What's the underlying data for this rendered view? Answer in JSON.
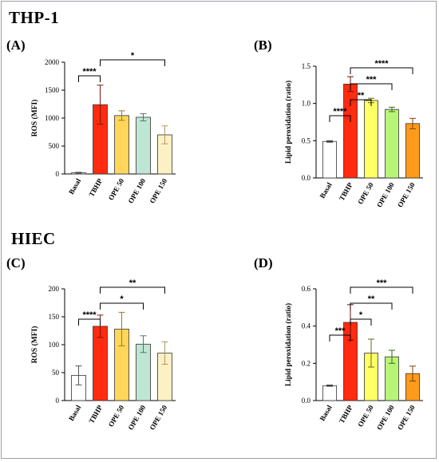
{
  "groups": {
    "top": "THP-1",
    "bottom": "HIEC"
  },
  "panels": [
    {
      "letter": "(A)",
      "chart_data": {
        "type": "bar",
        "ylabel": "ROS (MFI)",
        "ylim": [
          0,
          2000
        ],
        "yticks": [
          0,
          500,
          1000,
          1500,
          2000
        ],
        "categories": [
          "Basal",
          "TBHP",
          "OPE 50",
          "OPE 100",
          "OPE 150"
        ],
        "values": [
          20,
          1240,
          1045,
          1015,
          700
        ],
        "errors": [
          10,
          350,
          85,
          65,
          160
        ],
        "colors": [
          "#ffffff",
          "#ff2a0f",
          "#ffd65a",
          "#bfe6d4",
          "#fdf0c4"
        ],
        "error_colors": [
          "#555555",
          "#7a1a0a",
          "#9a7a20",
          "#4a7a66",
          "#b09a60"
        ],
        "significance": [
          {
            "from": 0,
            "to": 1,
            "label": "****"
          },
          {
            "from": 1,
            "to": 4,
            "label": "*"
          }
        ]
      }
    },
    {
      "letter": "(B)",
      "chart_data": {
        "type": "bar",
        "ylabel": "Lipid peroxidation (ratio)",
        "ylim": [
          0,
          1.5
        ],
        "yticks": [
          0.0,
          0.5,
          1.0,
          1.5
        ],
        "categories": [
          "Basal",
          "TBHP",
          "OPE 50",
          "OPE 100",
          "OPE 150"
        ],
        "values": [
          0.49,
          1.26,
          1.04,
          0.92,
          0.73
        ],
        "errors": [
          0.01,
          0.1,
          0.03,
          0.03,
          0.07
        ],
        "colors": [
          "#ffffff",
          "#ff2a0f",
          "#ffff66",
          "#b8f577",
          "#ff9a1a"
        ],
        "error_colors": [
          "#333333",
          "#6a1208",
          "#6a6a10",
          "#3a6a18",
          "#7a4508"
        ],
        "significance": [
          {
            "from": 0,
            "to": 1,
            "label": "****"
          },
          {
            "from": 1,
            "to": 2,
            "label": "**"
          },
          {
            "from": 1,
            "to": 3,
            "label": "***"
          },
          {
            "from": 1,
            "to": 4,
            "label": "****"
          }
        ]
      }
    },
    {
      "letter": "(C)",
      "chart_data": {
        "type": "bar",
        "ylabel": "ROS (MFI)",
        "ylim": [
          0,
          200
        ],
        "yticks": [
          0,
          50,
          100,
          150,
          200
        ],
        "categories": [
          "Basal",
          "TBHP",
          "OPE 50",
          "OPE 100",
          "OPE 150"
        ],
        "values": [
          45,
          133,
          128,
          101,
          85
        ],
        "errors": [
          17,
          20,
          30,
          15,
          20
        ],
        "colors": [
          "#ffffff",
          "#ff2a0f",
          "#ffd65a",
          "#bfe6d4",
          "#fdf0c4"
        ],
        "error_colors": [
          "#555555",
          "#7a1a0a",
          "#9a7a20",
          "#4a7a66",
          "#b09a60"
        ],
        "significance": [
          {
            "from": 0,
            "to": 1,
            "label": "****"
          },
          {
            "from": 1,
            "to": 3,
            "label": "*"
          },
          {
            "from": 1,
            "to": 4,
            "label": "**"
          }
        ]
      }
    },
    {
      "letter": "(D)",
      "chart_data": {
        "type": "bar",
        "ylabel": "Lipid peroxidation (ratio)",
        "ylim": [
          0,
          0.6
        ],
        "yticks": [
          0.0,
          0.2,
          0.4,
          0.6
        ],
        "categories": [
          "Basal",
          "TBHP",
          "OPE 50",
          "OPE 100",
          "OPE 150"
        ],
        "values": [
          0.08,
          0.42,
          0.255,
          0.235,
          0.145
        ],
        "errors": [
          0.003,
          0.095,
          0.075,
          0.035,
          0.04
        ],
        "colors": [
          "#ffffff",
          "#ff2a0f",
          "#ffff66",
          "#b8f577",
          "#ff9a1a"
        ],
        "error_colors": [
          "#333333",
          "#6a1208",
          "#6a6a10",
          "#3a6a18",
          "#7a4508"
        ],
        "significance": [
          {
            "from": 0,
            "to": 1,
            "label": "***"
          },
          {
            "from": 1,
            "to": 2,
            "label": "*"
          },
          {
            "from": 1,
            "to": 3,
            "label": "**"
          },
          {
            "from": 1,
            "to": 4,
            "label": "***"
          }
        ]
      }
    }
  ]
}
